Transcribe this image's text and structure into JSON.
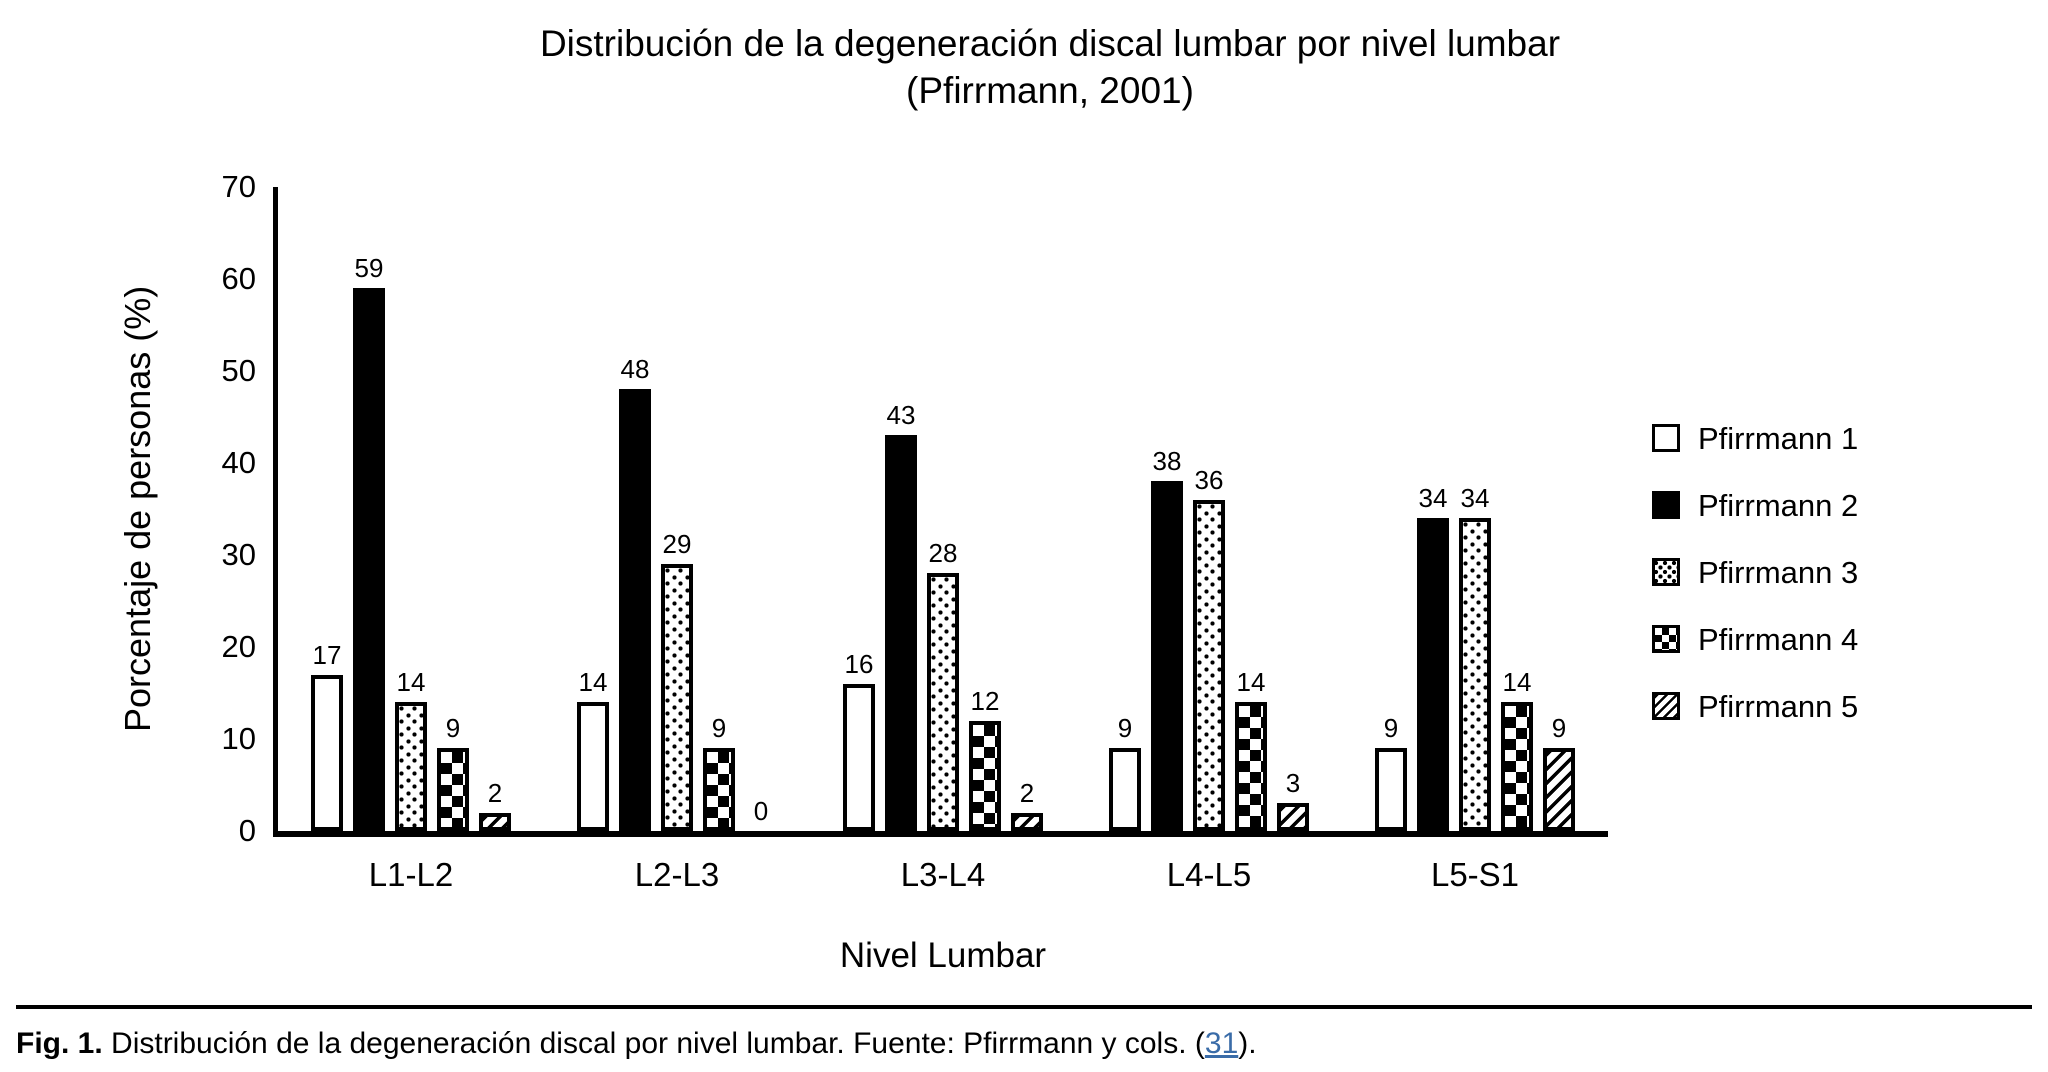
{
  "title": {
    "line1": "Distribución de la degeneración discal lumbar por nivel lumbar",
    "line2": "(Pfirrmann, 2001)"
  },
  "chart_data": {
    "type": "bar",
    "title": "Distribución de la degeneración discal lumbar por nivel lumbar (Pfirrmann, 2001)",
    "categories": [
      "L1-L2",
      "L2-L3",
      "L3-L4",
      "L4-L5",
      "L5-S1"
    ],
    "series": [
      {
        "name": "Pfirrmann 1",
        "pattern": "white-outline",
        "values": [
          17,
          14,
          16,
          9,
          9
        ]
      },
      {
        "name": "Pfirrmann 2",
        "pattern": "solid-black",
        "values": [
          59,
          48,
          43,
          38,
          34
        ]
      },
      {
        "name": "Pfirrmann 3",
        "pattern": "dotted",
        "values": [
          14,
          29,
          28,
          36,
          34
        ]
      },
      {
        "name": "Pfirrmann 4",
        "pattern": "checkerboard",
        "values": [
          9,
          9,
          12,
          14,
          14
        ]
      },
      {
        "name": "Pfirrmann 5",
        "pattern": "diagonal-hatch",
        "values": [
          2,
          0,
          2,
          3,
          9
        ]
      }
    ],
    "xlabel": "Nivel Lumbar",
    "ylabel": "Porcentaje de personas (%)",
    "ylim": [
      0,
      70
    ],
    "yticks": [
      0,
      10,
      20,
      30,
      40,
      50,
      60,
      70
    ],
    "grid": false,
    "legend_position": "right",
    "bar_value_labels": true
  },
  "caption": {
    "fig_label": "Fig. 1.",
    "text": " Distribución de la degeneración discal por nivel lumbar. Fuente: Pfirrmann y cols. (",
    "link_text": "31",
    "suffix": ")."
  },
  "colors": {
    "foreground": "#000000",
    "background": "#ffffff",
    "link_blue": "#3a6ca8"
  }
}
